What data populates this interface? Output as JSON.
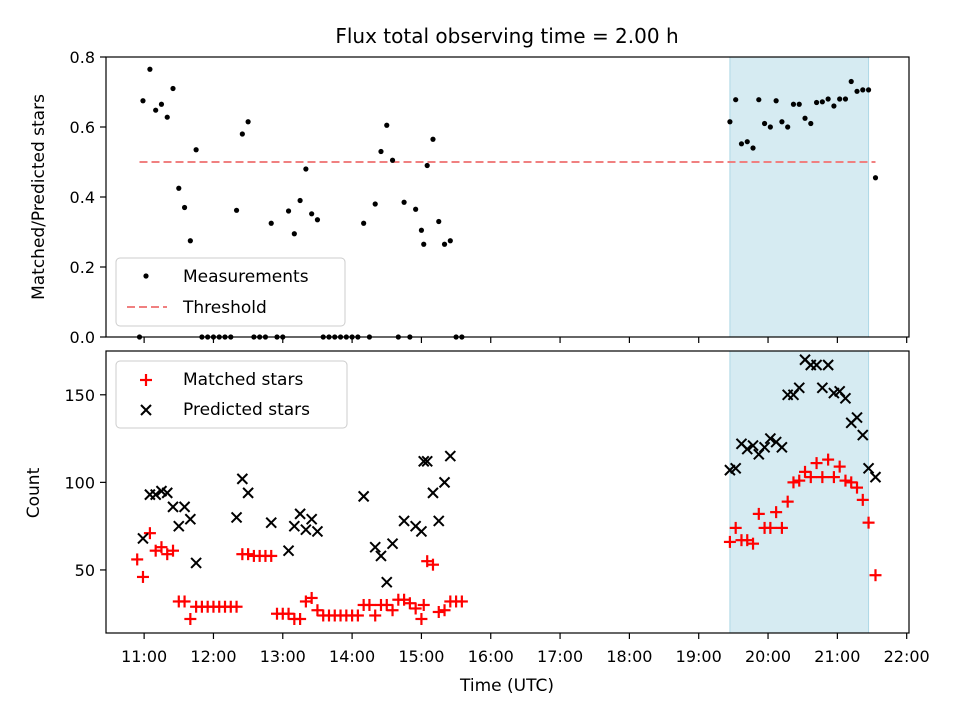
{
  "figure": {
    "title": "Flux total observing time = 2.00 h",
    "xlabel": "Time (UTC)"
  },
  "colors": {
    "measurements": "#000000",
    "threshold": "#f08080",
    "matched": "#ff0000",
    "predicted": "#000000",
    "highlight": "#add8e6"
  },
  "chart_data": [
    {
      "type": "scatter",
      "panel": "top",
      "ylabel": "Matched/Predicted stars",
      "xlim": [
        "10:27",
        "22:02"
      ],
      "ylim": [
        0,
        0.8
      ],
      "yticks": [
        0.0,
        0.2,
        0.4,
        0.6,
        0.8
      ],
      "ytick_labels": [
        "0.0",
        "0.2",
        "0.4",
        "0.6",
        "0.8"
      ],
      "legend_loc": "lower-left",
      "highlight_span": [
        "19:27",
        "21:27"
      ],
      "threshold": {
        "name": "Threshold",
        "y": 0.5,
        "x": [
          "10:56",
          "21:33"
        ]
      },
      "series": [
        {
          "name": "Measurements",
          "marker": "dot",
          "points": [
            [
              "10:56",
              0.0
            ],
            [
              "10:59",
              0.675
            ],
            [
              "11:05",
              0.765
            ],
            [
              "11:10",
              0.648
            ],
            [
              "11:15",
              0.665
            ],
            [
              "11:20",
              0.628
            ],
            [
              "11:25",
              0.71
            ],
            [
              "11:30",
              0.425
            ],
            [
              "11:35",
              0.37
            ],
            [
              "11:40",
              0.275
            ],
            [
              "11:45",
              0.535
            ],
            [
              "11:50",
              0.0
            ],
            [
              "11:55",
              0.0
            ],
            [
              "12:00",
              0.0
            ],
            [
              "12:05",
              0.0
            ],
            [
              "12:10",
              0.0
            ],
            [
              "12:15",
              0.0
            ],
            [
              "12:20",
              0.362
            ],
            [
              "12:25",
              0.58
            ],
            [
              "12:30",
              0.615
            ],
            [
              "12:35",
              0.0
            ],
            [
              "12:40",
              0.0
            ],
            [
              "12:45",
              0.0
            ],
            [
              "12:50",
              0.325
            ],
            [
              "12:55",
              0.0
            ],
            [
              "13:00",
              0.0
            ],
            [
              "13:05",
              0.36
            ],
            [
              "13:10",
              0.295
            ],
            [
              "13:15",
              0.39
            ],
            [
              "13:20",
              0.48
            ],
            [
              "13:25",
              0.352
            ],
            [
              "13:30",
              0.335
            ],
            [
              "13:35",
              0.0
            ],
            [
              "13:40",
              0.0
            ],
            [
              "13:45",
              0.0
            ],
            [
              "13:50",
              0.0
            ],
            [
              "13:55",
              0.0
            ],
            [
              "14:00",
              0.0
            ],
            [
              "14:05",
              0.0
            ],
            [
              "14:10",
              0.325
            ],
            [
              "14:15",
              0.0
            ],
            [
              "14:20",
              0.38
            ],
            [
              "14:25",
              0.53
            ],
            [
              "14:30",
              0.605
            ],
            [
              "14:35",
              0.505
            ],
            [
              "14:40",
              0.0
            ],
            [
              "14:45",
              0.385
            ],
            [
              "14:50",
              0.0
            ],
            [
              "14:55",
              0.365
            ],
            [
              "15:00",
              0.305
            ],
            [
              "15:02",
              0.265
            ],
            [
              "15:05",
              0.49
            ],
            [
              "15:10",
              0.565
            ],
            [
              "15:15",
              0.33
            ],
            [
              "15:20",
              0.265
            ],
            [
              "15:25",
              0.275
            ],
            [
              "15:30",
              0.0
            ],
            [
              "15:35",
              0.0
            ],
            [
              "19:27",
              0.615
            ],
            [
              "19:32",
              0.678
            ],
            [
              "19:37",
              0.552
            ],
            [
              "19:42",
              0.558
            ],
            [
              "19:47",
              0.54
            ],
            [
              "19:52",
              0.678
            ],
            [
              "19:57",
              0.61
            ],
            [
              "20:02",
              0.6
            ],
            [
              "20:07",
              0.675
            ],
            [
              "20:12",
              0.615
            ],
            [
              "20:17",
              0.6
            ],
            [
              "20:22",
              0.665
            ],
            [
              "20:27",
              0.665
            ],
            [
              "20:32",
              0.625
            ],
            [
              "20:37",
              0.61
            ],
            [
              "20:42",
              0.67
            ],
            [
              "20:47",
              0.672
            ],
            [
              "20:52",
              0.68
            ],
            [
              "20:57",
              0.66
            ],
            [
              "21:02",
              0.68
            ],
            [
              "21:07",
              0.68
            ],
            [
              "21:12",
              0.73
            ],
            [
              "21:17",
              0.702
            ],
            [
              "21:22",
              0.706
            ],
            [
              "21:27",
              0.706
            ],
            [
              "21:33",
              0.455
            ]
          ]
        }
      ]
    },
    {
      "type": "scatter",
      "panel": "bottom",
      "ylabel": "Count",
      "xlim": [
        "10:27",
        "22:02"
      ],
      "ylim": [
        14,
        175
      ],
      "yticks": [
        50,
        100,
        150
      ],
      "ytick_labels": [
        "50",
        "100",
        "150"
      ],
      "xticks": [
        "11:00",
        "12:00",
        "13:00",
        "14:00",
        "15:00",
        "16:00",
        "17:00",
        "18:00",
        "19:00",
        "20:00",
        "21:00",
        "22:00"
      ],
      "legend_loc": "upper-left",
      "highlight_span": [
        "19:27",
        "21:27"
      ],
      "series": [
        {
          "name": "Matched stars",
          "marker": "plus",
          "points": [
            [
              "10:54",
              56
            ],
            [
              "10:59",
              46
            ],
            [
              "11:05",
              71
            ],
            [
              "11:10",
              61
            ],
            [
              "11:15",
              63
            ],
            [
              "11:20",
              59
            ],
            [
              "11:25",
              61
            ],
            [
              "11:30",
              32
            ],
            [
              "11:35",
              32
            ],
            [
              "11:40",
              22
            ],
            [
              "11:45",
              29
            ],
            [
              "11:50",
              29
            ],
            [
              "11:55",
              29
            ],
            [
              "12:00",
              29
            ],
            [
              "12:05",
              29
            ],
            [
              "12:10",
              29
            ],
            [
              "12:15",
              29
            ],
            [
              "12:20",
              29
            ],
            [
              "12:25",
              59
            ],
            [
              "12:30",
              59
            ],
            [
              "12:35",
              58
            ],
            [
              "12:40",
              58
            ],
            [
              "12:45",
              58
            ],
            [
              "12:50",
              58
            ],
            [
              "12:55",
              25
            ],
            [
              "13:00",
              25
            ],
            [
              "13:05",
              25
            ],
            [
              "13:10",
              22
            ],
            [
              "13:15",
              22
            ],
            [
              "13:20",
              32
            ],
            [
              "13:25",
              34
            ],
            [
              "13:30",
              27
            ],
            [
              "13:35",
              24
            ],
            [
              "13:40",
              24
            ],
            [
              "13:45",
              24
            ],
            [
              "13:50",
              24
            ],
            [
              "13:55",
              24
            ],
            [
              "14:00",
              24
            ],
            [
              "14:05",
              24
            ],
            [
              "14:10",
              30
            ],
            [
              "14:15",
              30
            ],
            [
              "14:20",
              24
            ],
            [
              "14:25",
              30
            ],
            [
              "14:30",
              30
            ],
            [
              "14:35",
              27
            ],
            [
              "14:40",
              33
            ],
            [
              "14:45",
              33
            ],
            [
              "14:50",
              31
            ],
            [
              "14:55",
              28
            ],
            [
              "15:00",
              22
            ],
            [
              "15:02",
              30
            ],
            [
              "15:05",
              55
            ],
            [
              "15:10",
              53
            ],
            [
              "15:15",
              26
            ],
            [
              "15:20",
              27
            ],
            [
              "15:25",
              32
            ],
            [
              "15:30",
              32
            ],
            [
              "15:35",
              32
            ],
            [
              "19:27",
              66
            ],
            [
              "19:32",
              74
            ],
            [
              "19:37",
              67
            ],
            [
              "19:42",
              67
            ],
            [
              "19:47",
              65
            ],
            [
              "19:52",
              82
            ],
            [
              "19:57",
              74
            ],
            [
              "20:02",
              74
            ],
            [
              "20:07",
              83
            ],
            [
              "20:12",
              74
            ],
            [
              "20:17",
              89
            ],
            [
              "20:22",
              100
            ],
            [
              "20:27",
              101
            ],
            [
              "20:32",
              106
            ],
            [
              "20:37",
              103
            ],
            [
              "20:42",
              111
            ],
            [
              "20:47",
              103
            ],
            [
              "20:52",
              113
            ],
            [
              "20:57",
              103
            ],
            [
              "21:02",
              109
            ],
            [
              "21:07",
              101
            ],
            [
              "21:12",
              100
            ],
            [
              "21:17",
              97
            ],
            [
              "21:22",
              90
            ],
            [
              "21:27",
              77
            ],
            [
              "21:33",
              47
            ]
          ]
        },
        {
          "name": "Predicted stars",
          "marker": "x",
          "points": [
            [
              "10:59",
              68
            ],
            [
              "11:05",
              93
            ],
            [
              "11:10",
              93
            ],
            [
              "11:15",
              95
            ],
            [
              "11:20",
              94
            ],
            [
              "11:25",
              86
            ],
            [
              "11:30",
              75
            ],
            [
              "11:35",
              86
            ],
            [
              "11:40",
              79
            ],
            [
              "11:45",
              54
            ],
            [
              "12:20",
              80
            ],
            [
              "12:25",
              102
            ],
            [
              "12:30",
              94
            ],
            [
              "12:50",
              77
            ],
            [
              "13:05",
              61
            ],
            [
              "13:10",
              75
            ],
            [
              "13:15",
              82
            ],
            [
              "13:20",
              73
            ],
            [
              "13:25",
              79
            ],
            [
              "13:30",
              72
            ],
            [
              "14:10",
              92
            ],
            [
              "14:20",
              63
            ],
            [
              "14:25",
              58
            ],
            [
              "14:30",
              43
            ],
            [
              "14:35",
              65
            ],
            [
              "14:45",
              78
            ],
            [
              "14:55",
              75
            ],
            [
              "15:00",
              72
            ],
            [
              "15:02",
              112
            ],
            [
              "15:05",
              112
            ],
            [
              "15:10",
              94
            ],
            [
              "15:15",
              78
            ],
            [
              "15:20",
              100
            ],
            [
              "15:25",
              115
            ],
            [
              "19:27",
              107
            ],
            [
              "19:32",
              108
            ],
            [
              "19:37",
              122
            ],
            [
              "19:42",
              119
            ],
            [
              "19:47",
              121
            ],
            [
              "19:52",
              116
            ],
            [
              "19:57",
              120
            ],
            [
              "20:02",
              125
            ],
            [
              "20:07",
              123
            ],
            [
              "20:12",
              120
            ],
            [
              "20:17",
              150
            ],
            [
              "20:22",
              150
            ],
            [
              "20:27",
              154
            ],
            [
              "20:32",
              170
            ],
            [
              "20:37",
              167
            ],
            [
              "20:42",
              167
            ],
            [
              "20:47",
              154
            ],
            [
              "20:52",
              167
            ],
            [
              "20:57",
              151
            ],
            [
              "21:02",
              152
            ],
            [
              "21:07",
              148
            ],
            [
              "21:12",
              134
            ],
            [
              "21:17",
              137
            ],
            [
              "21:22",
              127
            ],
            [
              "21:27",
              108
            ],
            [
              "21:33",
              103
            ]
          ]
        }
      ]
    }
  ]
}
